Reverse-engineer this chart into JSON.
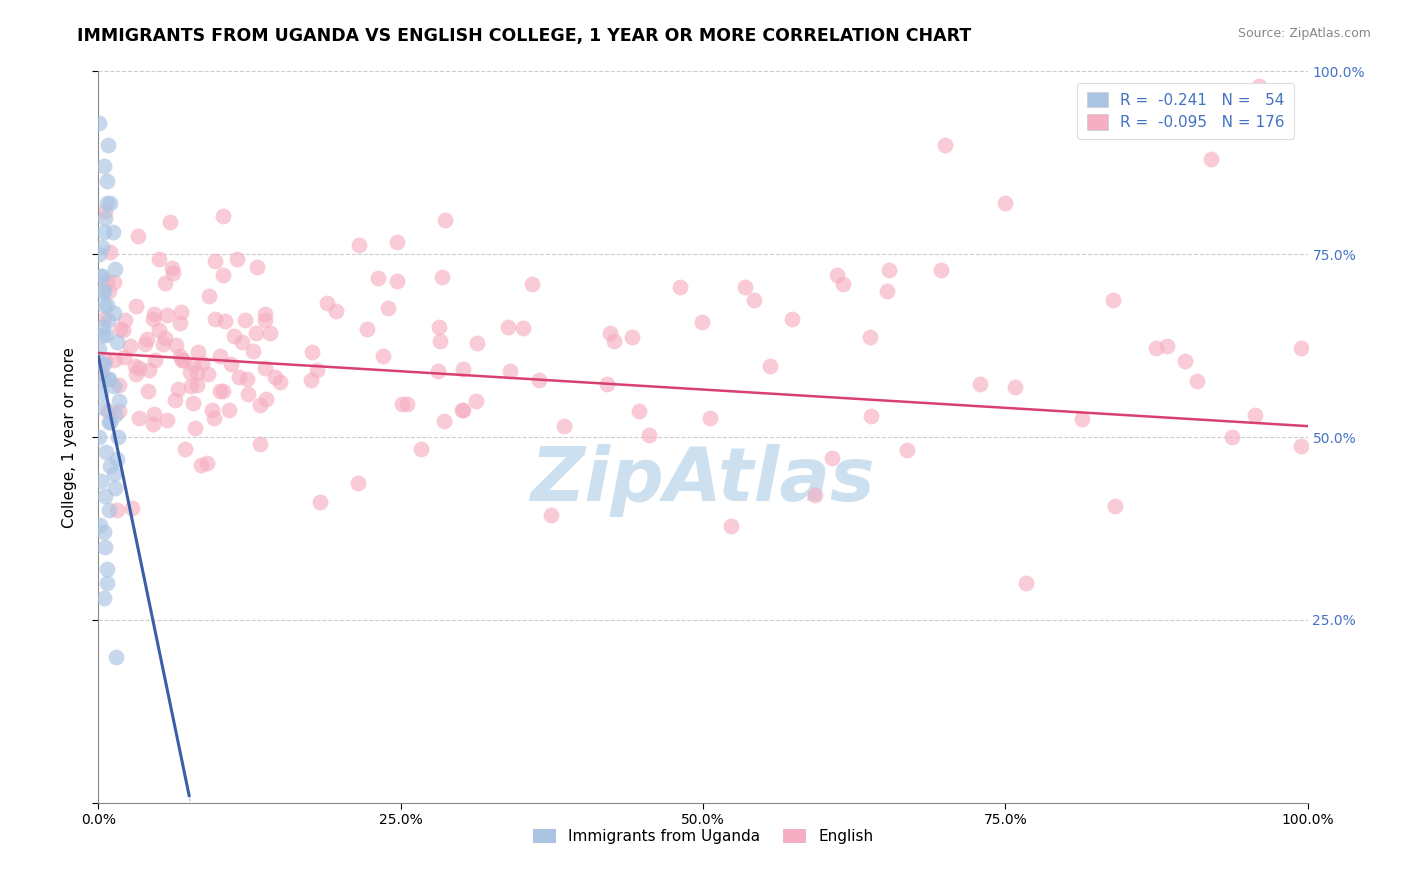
{
  "title": "IMMIGRANTS FROM UGANDA VS ENGLISH COLLEGE, 1 YEAR OR MORE CORRELATION CHART",
  "source_text": "Source: ZipAtlas.com",
  "ylabel": "College, 1 year or more",
  "xlim": [
    0.0,
    1.0
  ],
  "ylim": [
    0.0,
    1.0
  ],
  "xtick_labels": [
    "0.0%",
    "25.0%",
    "50.0%",
    "75.0%",
    "100.0%"
  ],
  "r_uganda": -0.241,
  "n_uganda": 54,
  "r_english": -0.095,
  "n_english": 176,
  "color_uganda": "#aac4e2",
  "color_english": "#f5afc2",
  "line_color_uganda": "#3a5fa8",
  "line_color_english": "#d94070",
  "right_tick_color": "#4472c4",
  "background_color": "#ffffff",
  "title_fontsize": 12.5,
  "axis_label_fontsize": 11,
  "tick_fontsize": 10,
  "legend_fontsize": 11
}
